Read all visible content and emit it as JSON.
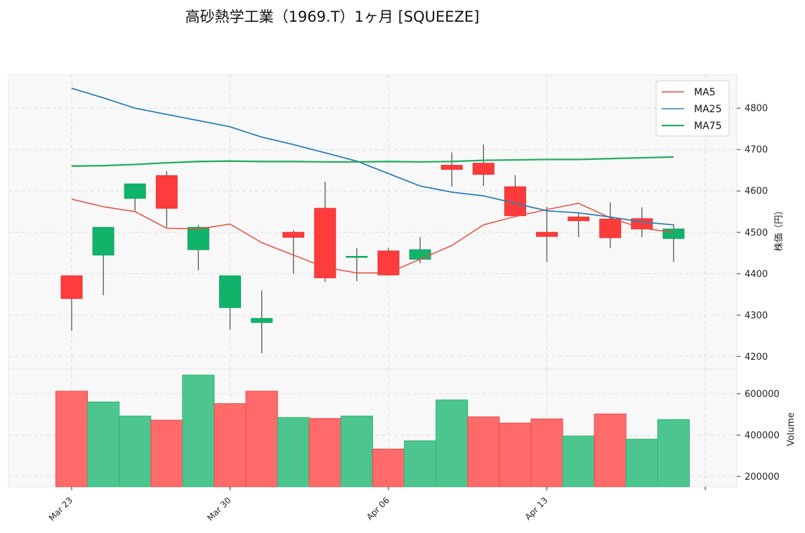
{
  "title": "高砂熱学工業（1969.T）1ヶ月 [SQUEEZE]",
  "colors": {
    "up": "#11b36b",
    "down": "#ff3b3b",
    "ma5": "#e74c3c",
    "ma25": "#2e7fb8",
    "ma75": "#27ae60",
    "panel_bg": "#f7f7f7",
    "grid": "#dddddd"
  },
  "chart_data": [
    {
      "type": "candlestick",
      "ylabel": "株価（円）",
      "ylim": [
        4170,
        4880
      ],
      "yticks": [
        4200,
        4300,
        4400,
        4500,
        4600,
        4700,
        4800
      ],
      "x_tick_labels": [
        "Mar 23",
        "Mar 30",
        "Apr 06",
        "Apr 13"
      ],
      "x_tick_index": [
        0,
        5,
        10,
        15
      ],
      "grid": true,
      "legend_position": "top-right",
      "legend": [
        "MA5",
        "MA25",
        "MA75"
      ],
      "candles": [
        {
          "date": "Mar 23",
          "open": 4395,
          "high": 4395,
          "low": 4262,
          "close": 4340
        },
        {
          "date": "Mar 24",
          "open": 4445,
          "high": 4512,
          "low": 4348,
          "close": 4512
        },
        {
          "date": "Mar 25",
          "open": 4582,
          "high": 4617,
          "low": 4552,
          "close": 4617
        },
        {
          "date": "Mar 26",
          "open": 4637,
          "high": 4648,
          "low": 4512,
          "close": 4558
        },
        {
          "date": "Mar 27",
          "open": 4458,
          "high": 4518,
          "low": 4408,
          "close": 4512
        },
        {
          "date": "Mar 30",
          "open": 4318,
          "high": 4395,
          "low": 4265,
          "close": 4395
        },
        {
          "date": "Mar 31",
          "open": 4282,
          "high": 4360,
          "low": 4208,
          "close": 4292
        },
        {
          "date": "Apr 01",
          "open": 4500,
          "high": 4505,
          "low": 4400,
          "close": 4488
        },
        {
          "date": "Apr 02",
          "open": 4558,
          "high": 4622,
          "low": 4380,
          "close": 4390
        },
        {
          "date": "Apr 03",
          "open": 4442,
          "high": 4462,
          "low": 4382,
          "close": 4442
        },
        {
          "date": "Apr 06",
          "open": 4455,
          "high": 4462,
          "low": 4395,
          "close": 4397
        },
        {
          "date": "Apr 07",
          "open": 4435,
          "high": 4488,
          "low": 4425,
          "close": 4458
        },
        {
          "date": "Apr 08",
          "open": 4662,
          "high": 4693,
          "low": 4610,
          "close": 4652
        },
        {
          "date": "Apr 09",
          "open": 4667,
          "high": 4712,
          "low": 4612,
          "close": 4640
        },
        {
          "date": "Apr 10",
          "open": 4610,
          "high": 4638,
          "low": 4538,
          "close": 4540
        },
        {
          "date": "Apr 13",
          "open": 4500,
          "high": 4562,
          "low": 4428,
          "close": 4490
        },
        {
          "date": "Apr 14",
          "open": 4537,
          "high": 4548,
          "low": 4488,
          "close": 4528
        },
        {
          "date": "Apr 15",
          "open": 4532,
          "high": 4572,
          "low": 4462,
          "close": 4487
        },
        {
          "date": "Apr 16",
          "open": 4533,
          "high": 4560,
          "low": 4488,
          "close": 4508
        },
        {
          "date": "Apr 17",
          "open": 4485,
          "high": 4520,
          "low": 4428,
          "close": 4508
        }
      ],
      "series": [
        {
          "name": "MA5",
          "values": [
            4580,
            4562,
            4550,
            4510,
            4508,
            4520,
            4475,
            4445,
            4415,
            4402,
            4402,
            4435,
            4468,
            4518,
            4538,
            4555,
            4570,
            4535,
            4510,
            4500
          ]
        },
        {
          "name": "MA25",
          "values": [
            4848,
            4825,
            4800,
            4785,
            4770,
            4755,
            4730,
            4712,
            4692,
            4672,
            4642,
            4612,
            4597,
            4588,
            4570,
            4552,
            4547,
            4537,
            4525,
            4518
          ]
        },
        {
          "name": "MA75",
          "values": [
            4660,
            4661,
            4664,
            4668,
            4671,
            4672,
            4671,
            4671,
            4670,
            4670,
            4671,
            4670,
            4671,
            4674,
            4675,
            4676,
            4676,
            4678,
            4680,
            4682
          ]
        }
      ]
    },
    {
      "type": "bar",
      "ylabel": "Volume",
      "ylim": [
        150000,
        720000
      ],
      "yticks": [
        200000,
        400000,
        600000
      ],
      "grid": true,
      "values": [
        612000,
        560000,
        492000,
        472000,
        690000,
        552000,
        612000,
        485000,
        480000,
        492000,
        332000,
        372000,
        570000,
        488000,
        458000,
        478000,
        395000,
        502000,
        380000,
        475000
      ],
      "direction": [
        "down",
        "up",
        "up",
        "down",
        "up",
        "down",
        "down",
        "up",
        "down",
        "up",
        "down",
        "up",
        "up",
        "down",
        "down",
        "down",
        "up",
        "down",
        "up",
        "up"
      ]
    }
  ]
}
